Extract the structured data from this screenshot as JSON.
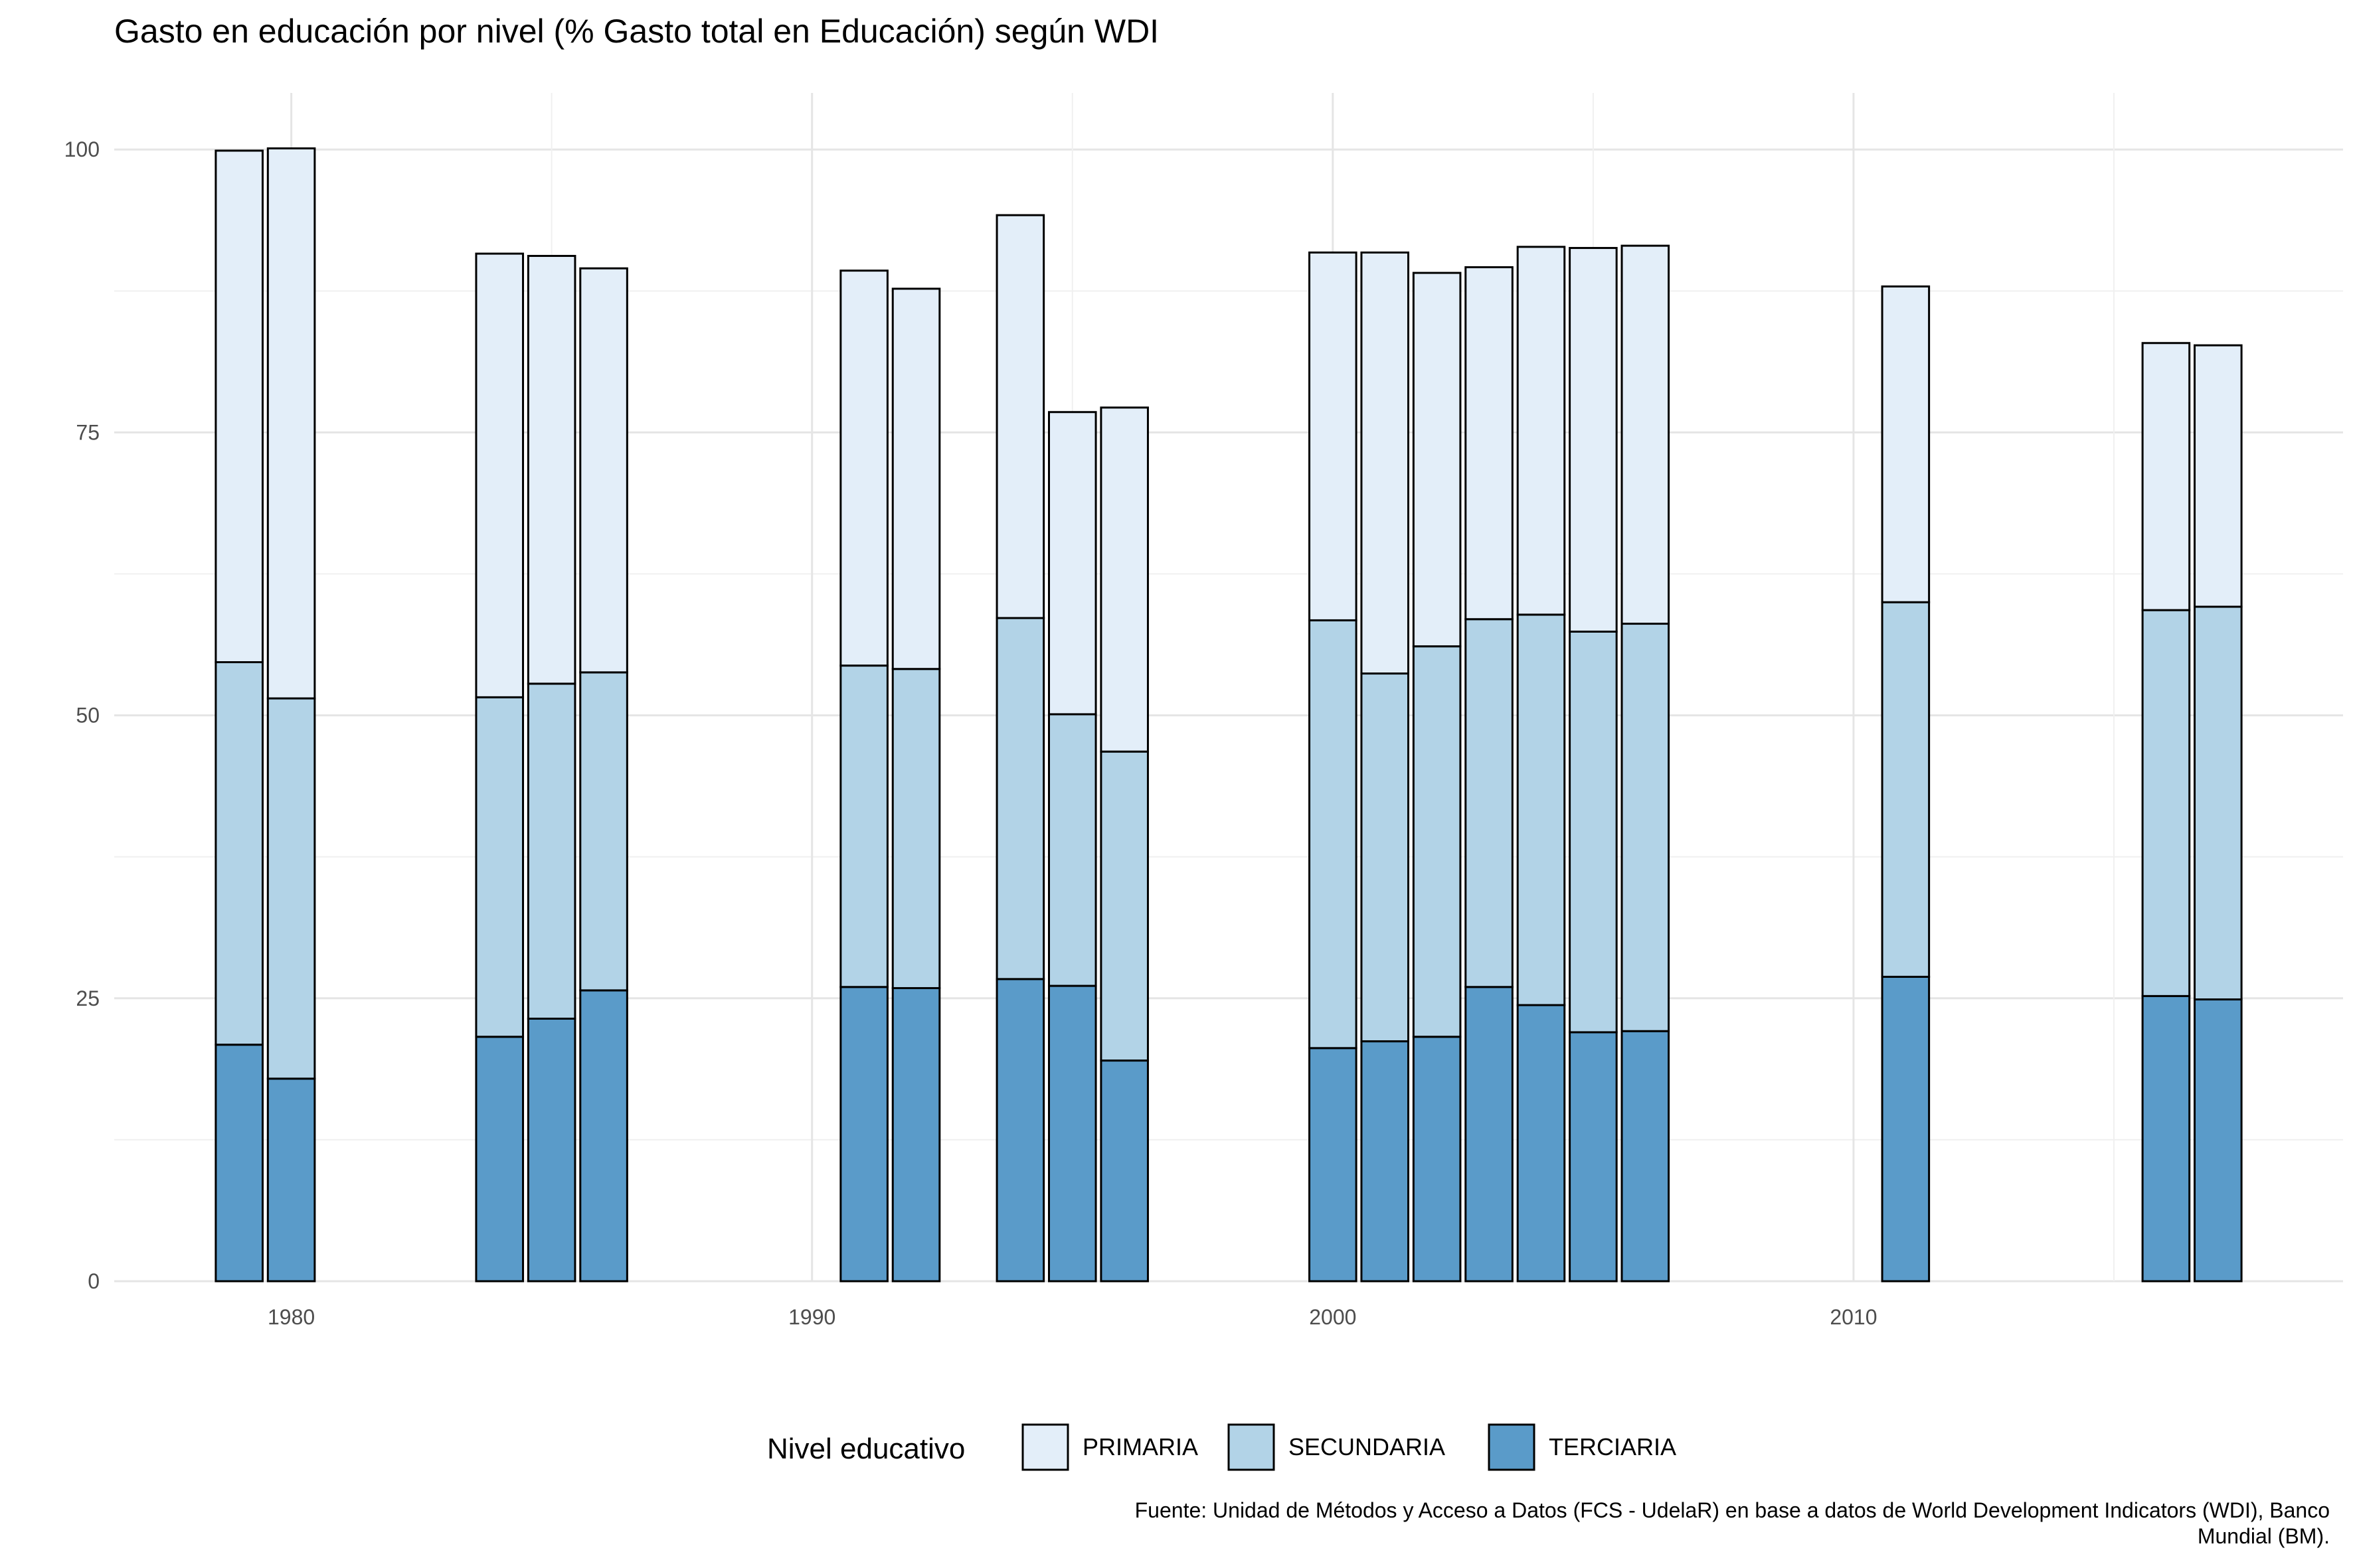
{
  "chart_data": {
    "type": "bar",
    "stacked": true,
    "title": "Gasto en educación por nivel (% Gasto total en Educación) según WDI",
    "xlabel": "",
    "ylabel": "",
    "ylim": [
      0,
      105
    ],
    "xlim": [
      1976.6,
      2019.4
    ],
    "grid": true,
    "legend_position": "bottom",
    "y_ticks": [
      "0",
      "25",
      "50",
      "75",
      "100"
    ],
    "x_ticks": [
      "1980",
      "1990",
      "2000",
      "2010"
    ],
    "x": [
      1979,
      1980,
      1984,
      1985,
      1986,
      1991,
      1992,
      1994,
      1995,
      1996,
      2000,
      2001,
      2002,
      2003,
      2004,
      2005,
      2006,
      2011,
      2016,
      2017
    ],
    "legend": {
      "title": "Nivel educativo",
      "entries": [
        {
          "label": "PRIMARIA",
          "color": "#e3eef9"
        },
        {
          "label": "SECUNDARIA",
          "color": "#b2d3e7"
        },
        {
          "label": "TERCIARIA",
          "color": "#5a9bc9"
        }
      ]
    },
    "series": [
      {
        "name": "TERCIARIA",
        "color": "#5a9bc9",
        "values": [
          20.9,
          17.9,
          21.6,
          23.2,
          25.7,
          26.0,
          25.9,
          26.7,
          26.1,
          19.5,
          20.6,
          21.2,
          21.6,
          26.0,
          24.4,
          22.0,
          22.1,
          26.9,
          25.2,
          24.9
        ]
      },
      {
        "name": "SECUNDARIA",
        "color": "#b2d3e7",
        "values": [
          33.8,
          33.6,
          30.0,
          29.6,
          28.1,
          28.4,
          28.2,
          31.9,
          24.0,
          27.3,
          37.8,
          32.5,
          34.5,
          32.5,
          34.5,
          35.4,
          36.0,
          33.1,
          34.1,
          34.7
        ]
      },
      {
        "name": "PRIMARIA",
        "color": "#e3eef9",
        "values": [
          45.2,
          48.6,
          39.2,
          37.8,
          35.7,
          34.9,
          33.6,
          35.6,
          26.7,
          30.4,
          32.5,
          37.2,
          33.0,
          31.1,
          32.5,
          33.9,
          33.4,
          27.9,
          23.6,
          23.1
        ]
      }
    ],
    "caption": [
      "Fuente: Unidad de Métodos y Acceso a Datos (FCS - UdelaR) en base a datos de World Development Indicators (WDI), Banco",
      "Mundial (BM)."
    ]
  }
}
